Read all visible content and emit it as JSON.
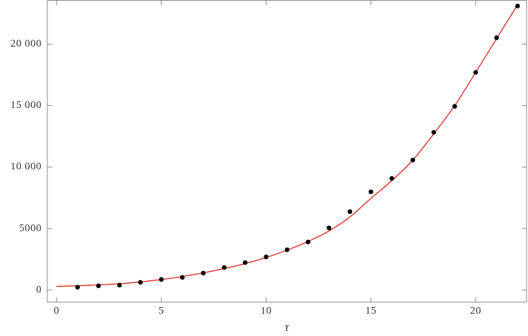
{
  "chart_data": {
    "type": "scatter",
    "x_label": "τ",
    "xlim": [
      -0.44,
      22.43
    ],
    "ylim": [
      -980,
      23560
    ],
    "xticks": [
      0,
      5,
      10,
      15,
      20
    ],
    "yticks": [
      0,
      5000,
      {
        "value": 10000,
        "label": "10 000"
      },
      {
        "value": 15000,
        "label": "15 000"
      },
      {
        "value": 20000,
        "label": "20 000"
      }
    ],
    "series": [
      {
        "type": "line",
        "color": "#e0201b",
        "x": [
          0,
          1,
          2,
          3,
          4,
          5,
          6,
          7,
          8,
          9,
          10,
          11,
          12,
          13,
          14,
          15,
          16,
          17,
          18,
          19,
          20,
          21,
          22
        ],
        "values": [
          300,
          350,
          420,
          520,
          660,
          860,
          1100,
          1400,
          1750,
          2150,
          2650,
          3250,
          3950,
          4800,
          5950,
          7450,
          8900,
          10570,
          12700,
          15000,
          17700,
          20450,
          23200
        ]
      },
      {
        "type": "scatter",
        "color": "#000000",
        "x": [
          1,
          2,
          3,
          4,
          5,
          6,
          7,
          8,
          9,
          10,
          11,
          12,
          13,
          14,
          15,
          16,
          17,
          18,
          19,
          20,
          21,
          22
        ],
        "values": [
          230,
          345,
          400,
          630,
          860,
          1030,
          1380,
          1840,
          2240,
          2700,
          3280,
          3910,
          5060,
          6380,
          7990,
          9080,
          10570,
          12820,
          14940,
          17700,
          20520,
          23100
        ]
      }
    ]
  }
}
